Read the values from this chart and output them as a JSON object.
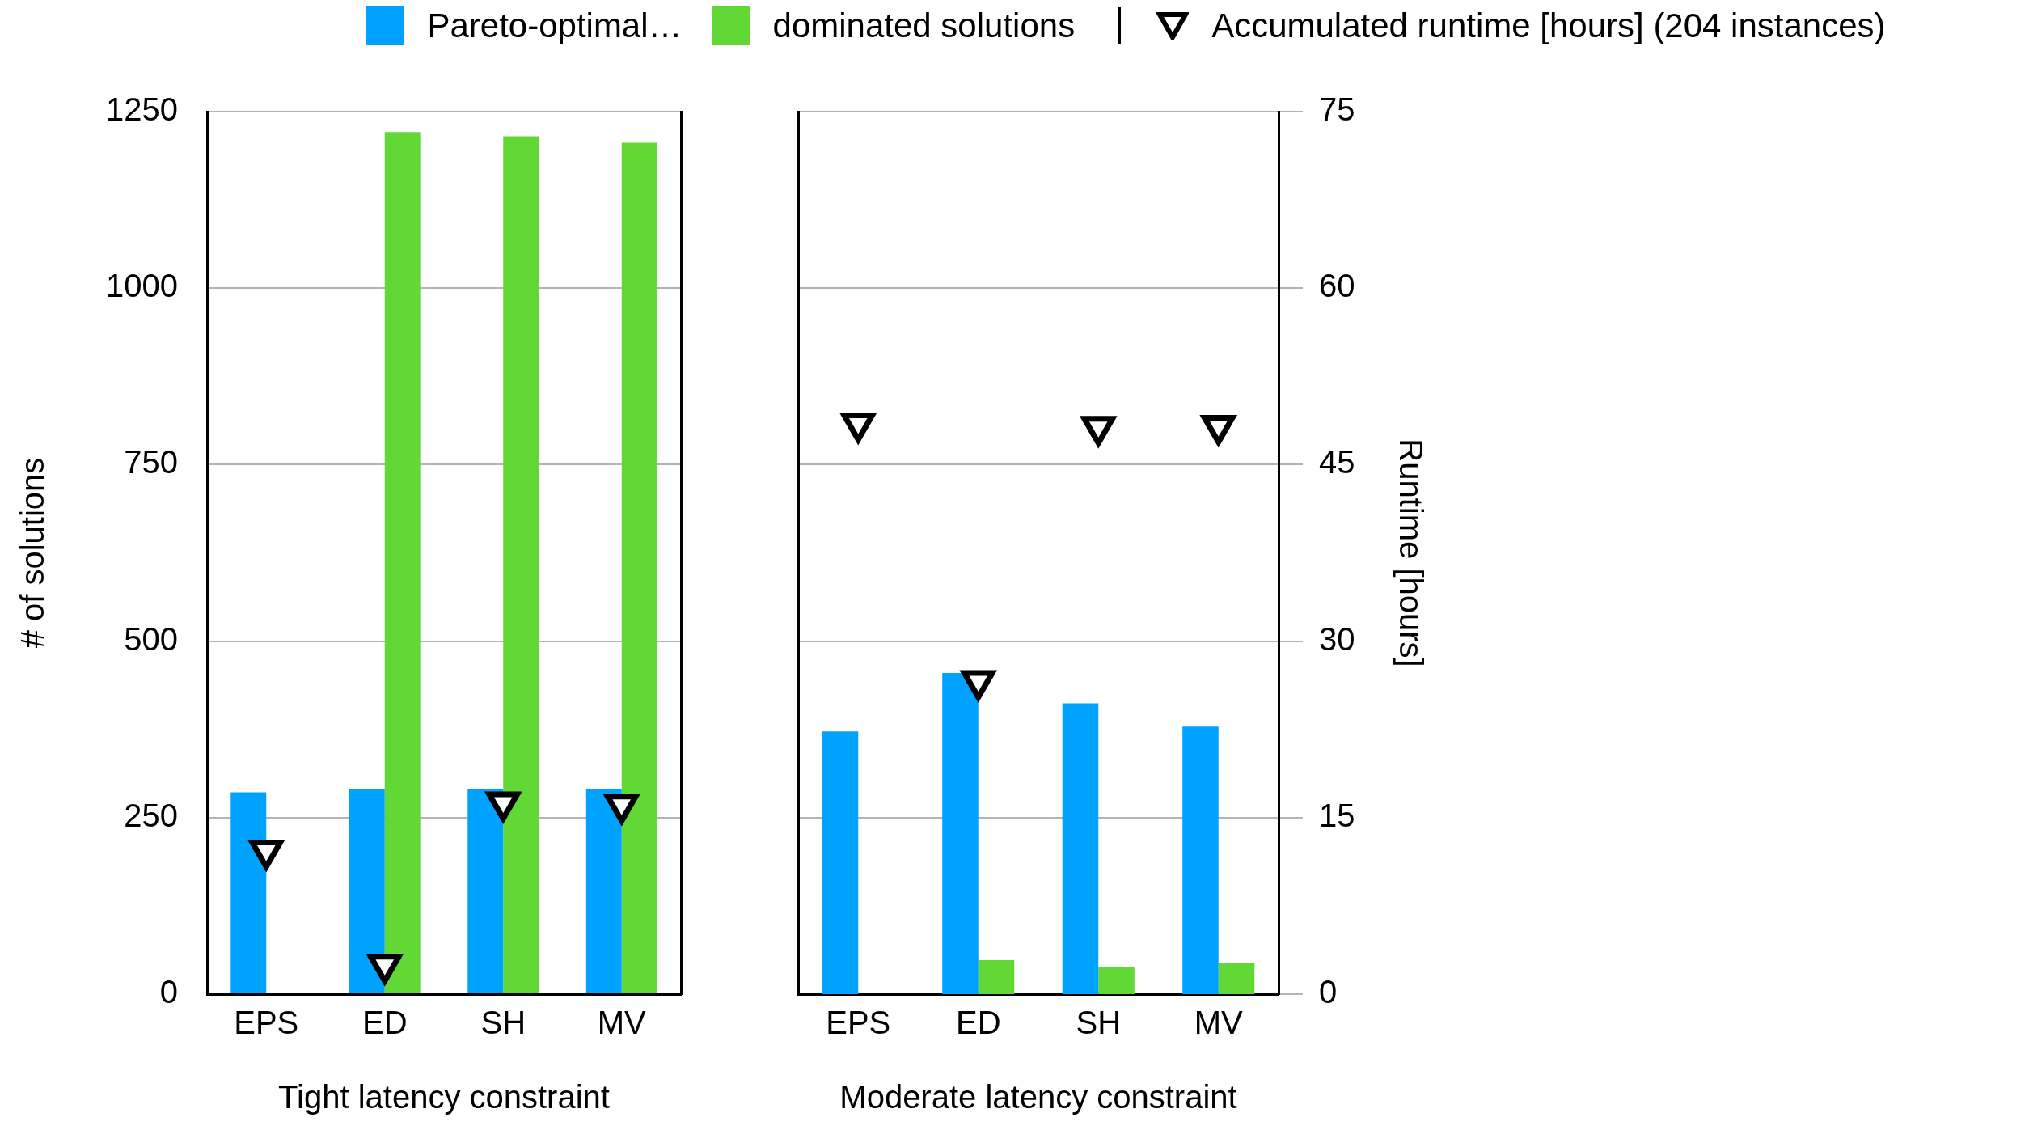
{
  "chart_data": [
    {
      "type": "bar",
      "categories": [
        "EPS",
        "ED",
        "SH",
        "MV"
      ],
      "xlabel": "Tight latency constraint",
      "ylabel": "# of solutions",
      "series": [
        {
          "name": "Pareto-optimal…",
          "color": "#00a2ff",
          "values": [
            286,
            291,
            291,
            291
          ]
        },
        {
          "name": "dominated solutions",
          "color": "#61d836",
          "values": [
            null,
            1221,
            1215,
            1206
          ]
        },
        {
          "name": "Accumulated runtime [hours] (204 instances)",
          "type": "scatter",
          "axis": "y2",
          "color": "#000000",
          "marker": "triangle",
          "values": [
            12.2,
            2.5,
            16.3,
            16.1
          ]
        }
      ],
      "ylim": [
        0,
        1250
      ],
      "yticks": [
        0,
        250,
        500,
        750,
        1000,
        1250
      ],
      "y2lim": [
        0,
        75
      ],
      "grid": "y",
      "legend": "top"
    },
    {
      "type": "bar",
      "categories": [
        "EPS",
        "ED",
        "SH",
        "MV"
      ],
      "xlabel": "Moderate latency constraint",
      "y2label": "Runtime [hours]",
      "series": [
        {
          "color": "#00a2ff",
          "values": [
            372,
            455,
            412,
            379
          ]
        },
        {
          "color": "#61d836",
          "values": [
            null,
            48,
            38,
            44
          ]
        },
        {
          "type": "scatter",
          "axis": "y2",
          "color": "#000000",
          "marker": "triangle",
          "values": [
            48.5,
            26.6,
            48.2,
            48.3
          ]
        }
      ],
      "ylim": [
        0,
        1250
      ],
      "y2lim": [
        0,
        75
      ],
      "y2ticks": [
        0,
        15,
        30,
        45,
        60,
        75
      ],
      "grid": "y"
    }
  ]
}
